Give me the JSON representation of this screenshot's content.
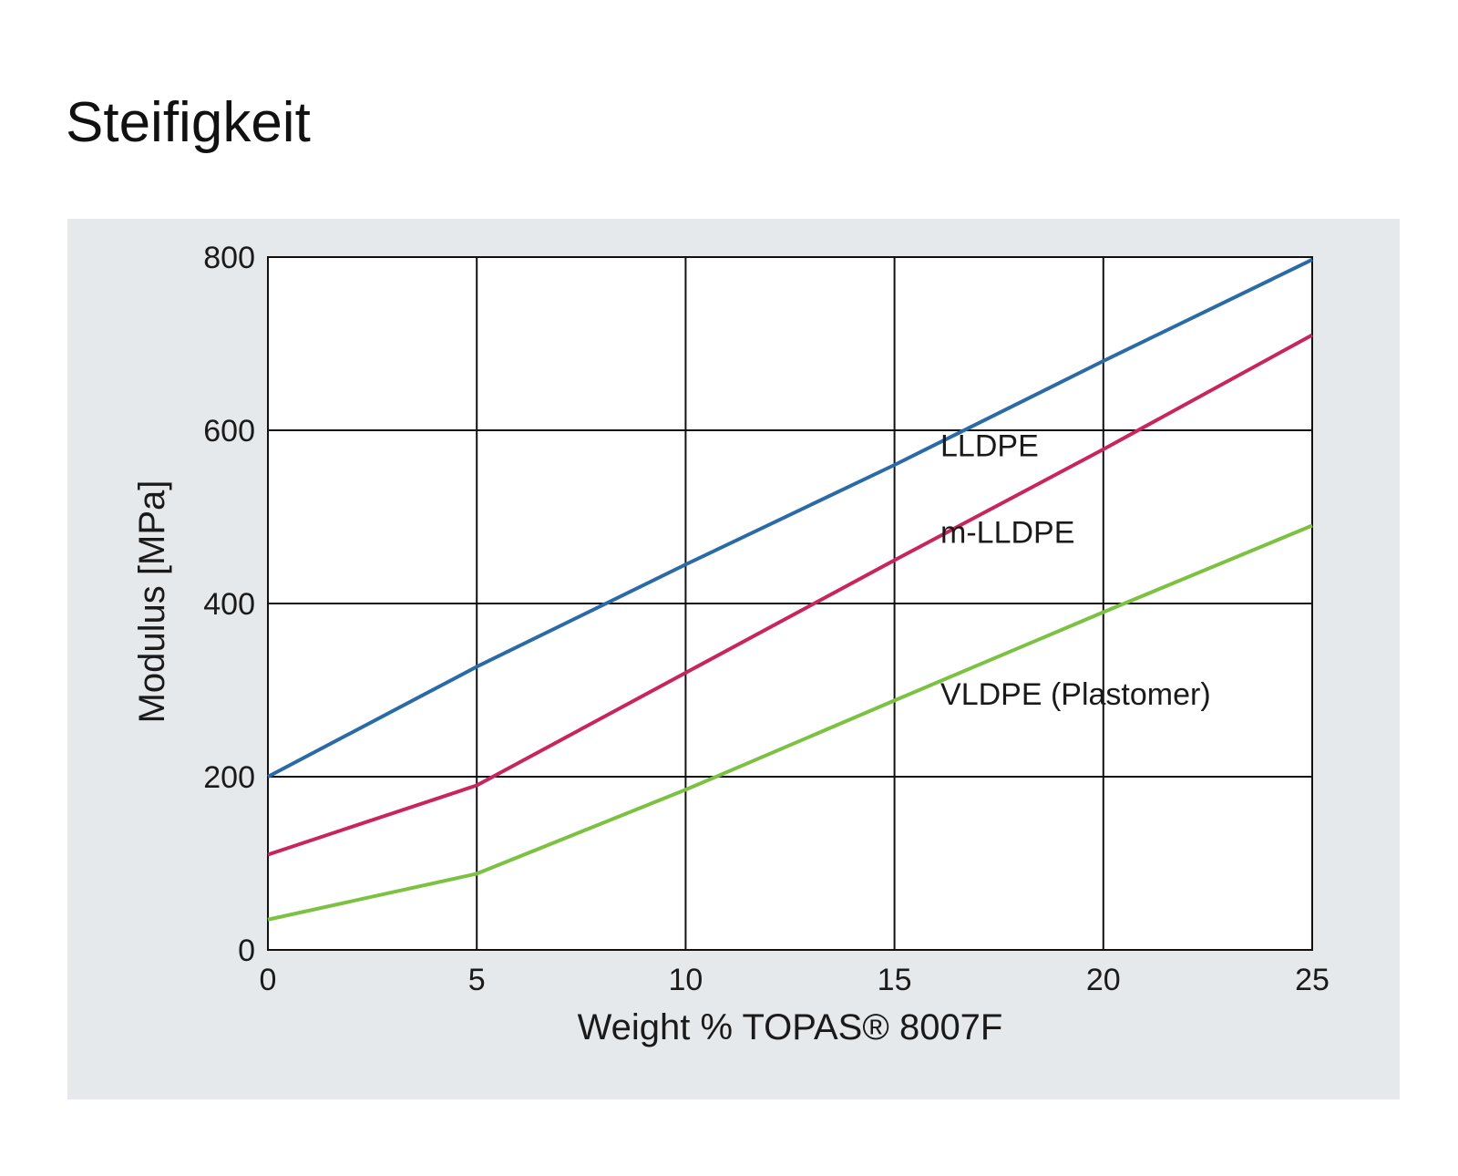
{
  "page": {
    "title": "Steifigkeit"
  },
  "chart_data": {
    "type": "line",
    "x": [
      0,
      5,
      10,
      15,
      20,
      25
    ],
    "xlim": [
      0,
      25
    ],
    "ylim": [
      0,
      800
    ],
    "xticks": [
      "0",
      "5",
      "10",
      "15",
      "20",
      "25"
    ],
    "yticks": [
      "0",
      "200",
      "400",
      "600",
      "800"
    ],
    "xlabel": "Weight % TOPAS® 8007F",
    "ylabel": "Modulus [MPa]",
    "grid": true,
    "series": [
      {
        "name": "LLDPE",
        "color": "#2a6aa6",
        "x": [
          0,
          5,
          10,
          15,
          20,
          25
        ],
        "values": [
          200,
          327,
          445,
          560,
          680,
          797
        ]
      },
      {
        "name": "m-LLDPE",
        "color": "#c8245e",
        "x": [
          0,
          5,
          10,
          15,
          20,
          25
        ],
        "values": [
          110,
          190,
          320,
          450,
          578,
          710
        ]
      },
      {
        "name": "VLDPE (Plastomer)",
        "color": "#7cc142",
        "x": [
          0,
          5,
          10,
          15,
          20,
          25
        ],
        "values": [
          35,
          88,
          185,
          288,
          390,
          490
        ]
      }
    ]
  }
}
